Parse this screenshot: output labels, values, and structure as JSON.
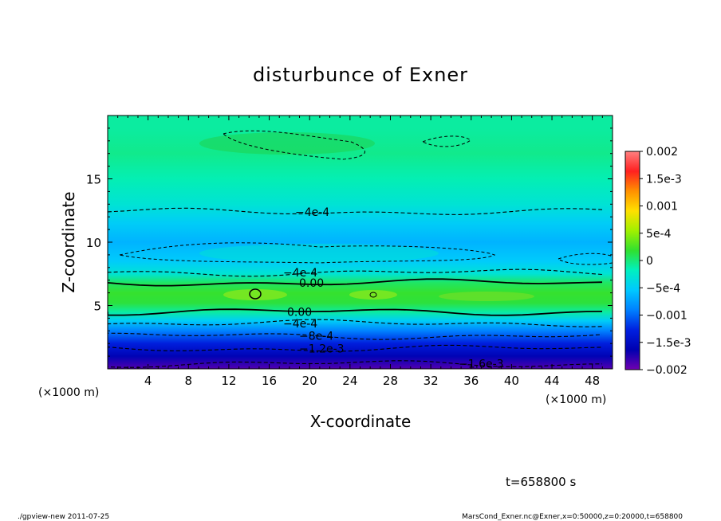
{
  "chart_data": {
    "type": "heatmap",
    "title": "disturbunce of Exner",
    "xlabel": "X-coordinate",
    "ylabel": "Z-coordinate",
    "x_unit_left": "(×1000 m)",
    "x_unit_right": "(×1000 m)",
    "xlim": [
      0,
      50
    ],
    "ylim": [
      0,
      20
    ],
    "x_ticks": [
      4,
      8,
      12,
      16,
      20,
      24,
      28,
      32,
      36,
      40,
      44,
      48
    ],
    "x_tick_labels": [
      "4",
      "8",
      "12",
      "16",
      "20",
      "24",
      "28",
      "32",
      "36",
      "40",
      "44",
      "48"
    ],
    "y_ticks": [
      5,
      10,
      15
    ],
    "y_tick_labels": [
      "5",
      "10",
      "15"
    ],
    "colorbar": {
      "min": -0.002,
      "max": 0.002,
      "ticks": [
        0.002,
        0.0015,
        0.001,
        0.0005,
        0,
        -0.0005,
        -0.001,
        -0.0015,
        -0.002
      ],
      "tick_labels": [
        "0.002",
        "1.5e-3",
        "0.001",
        "5e-4",
        "0",
        "−5e-4",
        "−0.001",
        "−1.5e-3",
        "−0.002"
      ],
      "colors": [
        "#ff8080",
        "#ff2020",
        "#ff9000",
        "#ffe000",
        "#a0f000",
        "#30e030",
        "#00f0c0",
        "#00c8ff",
        "#0080ff",
        "#0020e0",
        "#0000b0",
        "#7000b0"
      ]
    },
    "profile": {
      "z": [
        0,
        1,
        2,
        3,
        3.8,
        4.5,
        5.2,
        6.0,
        6.8,
        7.5,
        8.5,
        10,
        11.5,
        13,
        15,
        17,
        19,
        20
      ],
      "values": [
        -0.0019,
        -0.0016,
        -0.0013,
        -0.0009,
        -0.0005,
        -0.0001,
        0.00015,
        0.0002,
        5e-05,
        -0.0003,
        -0.00052,
        -0.00065,
        -0.0005,
        -0.0003,
        -0.00015,
        -5e-05,
        -0.0001,
        -0.0001
      ]
    },
    "contours": [
      {
        "label": "0.00",
        "z": 6.8,
        "style": "solid"
      },
      {
        "label": "0.00",
        "z": 4.5,
        "style": "solid"
      },
      {
        "label": "−4e-4",
        "z": 12.4,
        "style": "dashed"
      },
      {
        "label": "−4e-4",
        "z": 7.6,
        "style": "dashed"
      },
      {
        "label": "−4e-4",
        "z": 3.6,
        "style": "dashed"
      },
      {
        "label": "−8e-4",
        "z": 2.6,
        "style": "dashed"
      },
      {
        "label": "−1.2e-3",
        "z": 1.6,
        "style": "dashed"
      },
      {
        "label": "−1.6e-3",
        "z": 0.4,
        "style": "dashed"
      }
    ],
    "time_label": "t=658800 s"
  },
  "footer": {
    "left": "./gpview-new  2011-07-25",
    "right": "MarsCond_Exner.nc@Exner,x=0:50000,z=0:20000,t=658800"
  }
}
